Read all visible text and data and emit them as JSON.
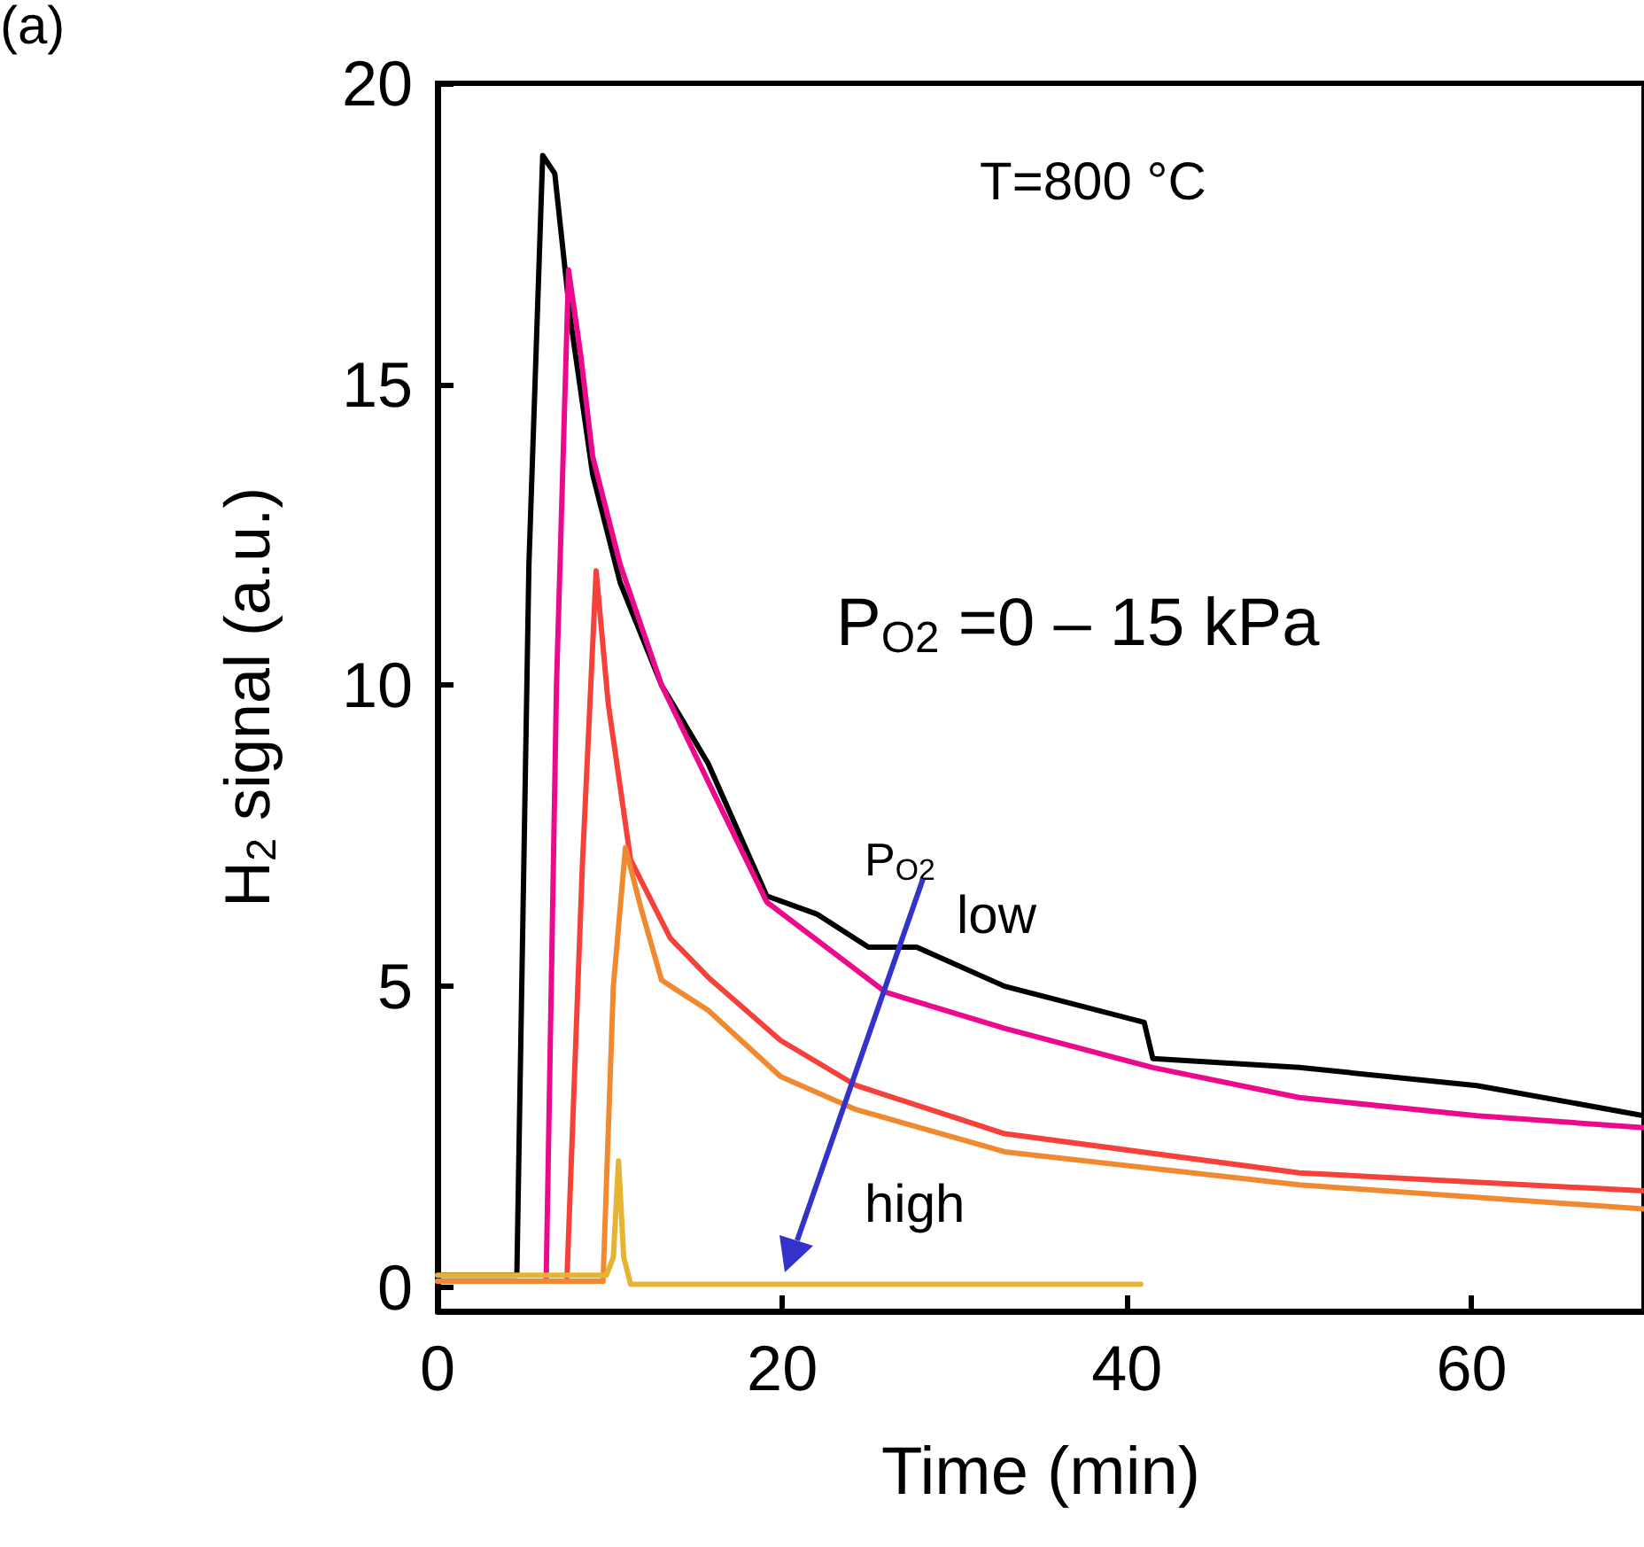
{
  "chart_data": {
    "type": "line",
    "xlabel": "Time (min)",
    "ylabel": "H$_{2}$ signal (a.u.)",
    "xlim": [
      0,
      70
    ],
    "ylim": [
      -0.4,
      20
    ],
    "xticks": [
      0,
      20,
      40,
      60
    ],
    "yticks": [
      0,
      5,
      10,
      15,
      20
    ],
    "grid": false,
    "marker": "none",
    "line_style": "solid",
    "annotations": [
      "(a)",
      "T=800 °C",
      "P$_{O2}$ =0 – 15 kPa",
      "P$_{O2}$",
      "low",
      "high"
    ],
    "series": [
      {
        "color": "#000000",
        "x": [
          0,
          4.6,
          5.3,
          6.1,
          6.8,
          7.7,
          9,
          10.6,
          13,
          15.7,
          19.1,
          22,
          25,
          27.8,
          32.9,
          41,
          41.5,
          50,
          60.3,
          70
        ],
        "values": [
          0.2,
          0.2,
          12,
          18.8,
          18.5,
          16.1,
          13.5,
          11.7,
          10,
          8.7,
          6.5,
          6.2,
          5.65,
          5.65,
          5,
          4.4,
          3.8,
          3.65,
          3.35,
          2.85
        ]
      },
      {
        "color": "#ec0a8c",
        "x": [
          0,
          6.3,
          6.9,
          7.6,
          8.3,
          9,
          10.6,
          13,
          15.7,
          19.1,
          26,
          32.9,
          41.5,
          50,
          60.3,
          70
        ],
        "values": [
          0.1,
          0.1,
          10,
          16.9,
          15.5,
          13.8,
          12,
          10,
          8.4,
          6.4,
          4.9,
          4.3,
          3.65,
          3.15,
          2.85,
          2.65
        ]
      },
      {
        "color": "#f5403c",
        "x": [
          0,
          7.5,
          8.4,
          9.2,
          9.9,
          11.2,
          13.5,
          15.7,
          19.9,
          24.3,
          32.9,
          50,
          70
        ],
        "values": [
          0.1,
          0.1,
          7,
          11.9,
          9.7,
          7.1,
          5.8,
          5.15,
          4.1,
          3.35,
          2.55,
          1.9,
          1.6
        ]
      },
      {
        "color": "#f08a30",
        "x": [
          0,
          9.6,
          10.2,
          10.9,
          11.8,
          13,
          15.7,
          19.9,
          24.3,
          32.9,
          50,
          70
        ],
        "values": [
          0.1,
          0.1,
          5,
          7.3,
          6.3,
          5.1,
          4.6,
          3.5,
          2.95,
          2.25,
          1.7,
          1.3
        ]
      },
      {
        "color": "#e6b432",
        "x": [
          0,
          9.8,
          10.2,
          10.5,
          10.8,
          11.2,
          20,
          30,
          40.8
        ],
        "values": [
          0.2,
          0.2,
          0.5,
          2.1,
          0.5,
          0.05,
          0.05,
          0.05,
          0.05
        ]
      }
    ]
  }
}
